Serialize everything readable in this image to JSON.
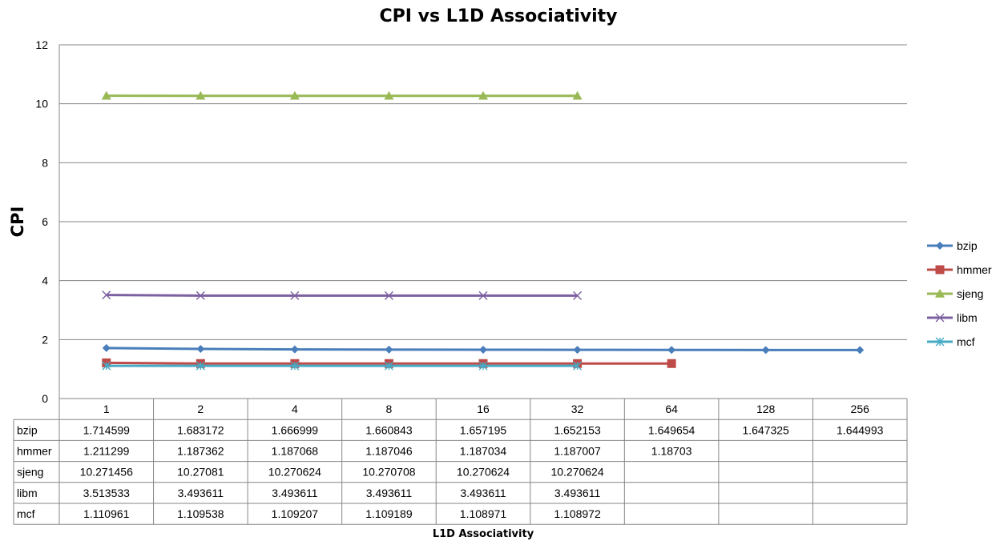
{
  "chart_data": {
    "type": "line",
    "title": "CPI vs L1D Associativity",
    "xlabel": "L1D Associativity",
    "ylabel": "CPI",
    "ylim": [
      0,
      12
    ],
    "yticks": [
      0,
      2,
      4,
      6,
      8,
      10,
      12
    ],
    "grid": true,
    "legend_position": "right",
    "data_table": true,
    "categories": [
      "1",
      "2",
      "4",
      "8",
      "16",
      "32",
      "64",
      "128",
      "256"
    ],
    "series": [
      {
        "name": "bzip",
        "color": "#4a7ebb",
        "marker": "diamond",
        "values": [
          1.714599,
          1.683172,
          1.666999,
          1.660843,
          1.657195,
          1.652153,
          1.649654,
          1.647325,
          1.644993
        ],
        "labels": [
          "1.714599",
          "1.683172",
          "1.666999",
          "1.660843",
          "1.657195",
          "1.652153",
          "1.649654",
          "1.647325",
          "1.644993"
        ]
      },
      {
        "name": "hmmer",
        "color": "#be4b48",
        "marker": "square",
        "values": [
          1.211299,
          1.187362,
          1.187068,
          1.187046,
          1.187034,
          1.187007,
          1.18703,
          null,
          null
        ],
        "labels": [
          "1.211299",
          "1.187362",
          "1.187068",
          "1.187046",
          "1.187034",
          "1.187007",
          "1.18703",
          "",
          ""
        ]
      },
      {
        "name": "sjeng",
        "color": "#98b954",
        "marker": "triangle",
        "values": [
          10.271456,
          10.27081,
          10.270624,
          10.270708,
          10.270624,
          10.270624,
          null,
          null,
          null
        ],
        "labels": [
          "10.271456",
          "10.27081",
          "10.270624",
          "10.270708",
          "10.270624",
          "10.270624",
          "",
          "",
          ""
        ]
      },
      {
        "name": "libm",
        "color": "#7d60a0",
        "marker": "x",
        "values": [
          3.513533,
          3.493611,
          3.493611,
          3.493611,
          3.493611,
          3.493611,
          null,
          null,
          null
        ],
        "labels": [
          "3.513533",
          "3.493611",
          "3.493611",
          "3.493611",
          "3.493611",
          "3.493611",
          "",
          "",
          ""
        ]
      },
      {
        "name": "mcf",
        "color": "#46aac5",
        "marker": "star",
        "values": [
          1.110961,
          1.109538,
          1.109207,
          1.109189,
          1.108971,
          1.108972,
          null,
          null,
          null
        ],
        "labels": [
          "1.110961",
          "1.109538",
          "1.109207",
          "1.109189",
          "1.108971",
          "1.108972",
          "",
          "",
          ""
        ]
      }
    ]
  }
}
